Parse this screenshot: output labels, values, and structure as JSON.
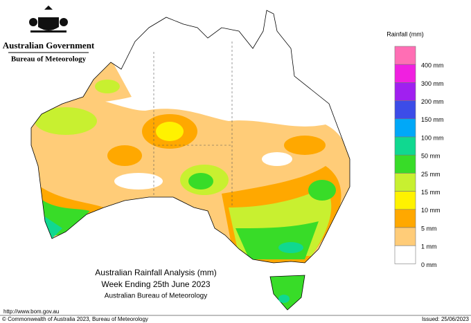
{
  "header": {
    "government": "Australian Government",
    "agency": "Bureau of Meteorology"
  },
  "legend": {
    "title": "Rainfall (mm)",
    "items": [
      {
        "label": "400 mm",
        "color": "#ff6eb4"
      },
      {
        "label": "300 mm",
        "color": "#f020e0"
      },
      {
        "label": "200 mm",
        "color": "#a020f0"
      },
      {
        "label": "150 mm",
        "color": "#3c4ce8"
      },
      {
        "label": "100 mm",
        "color": "#00a8f8"
      },
      {
        "label": "50 mm",
        "color": "#10d890"
      },
      {
        "label": "25 mm",
        "color": "#38dc28"
      },
      {
        "label": "15 mm",
        "color": "#c8f030"
      },
      {
        "label": "10 mm",
        "color": "#fff200"
      },
      {
        "label": "5 mm",
        "color": "#ffa800"
      },
      {
        "label": "1 mm",
        "color": "#ffcc78"
      },
      {
        "label": "0 mm",
        "color": "#ffffff"
      }
    ]
  },
  "caption": {
    "lines": [
      "Australian Rainfall Analysis (mm)",
      "Week Ending 25th June 2023",
      "Australian Bureau of Meteorology"
    ]
  },
  "footer": {
    "url": "http://www.bom.gov.au",
    "copyright": "© Commonwealth of Australia 2023, Bureau of Meteorology",
    "issued": "Issued: 25/06/2023"
  }
}
